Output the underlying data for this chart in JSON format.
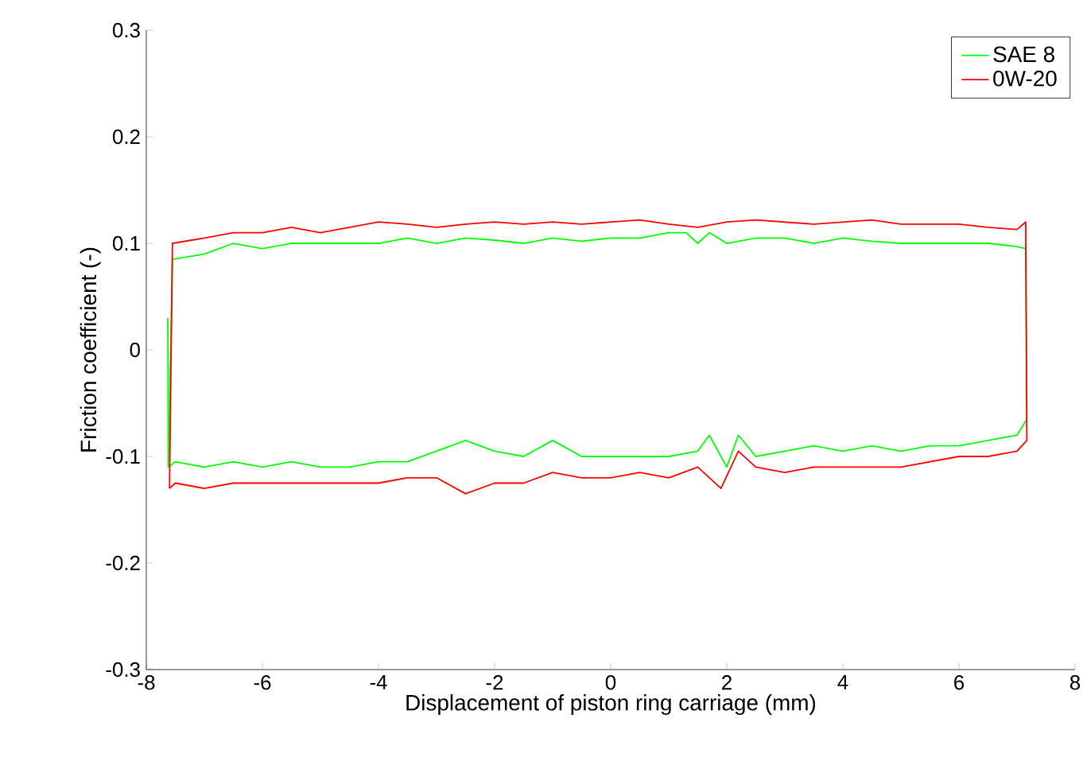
{
  "chart_data": {
    "type": "line",
    "xlabel": "Displacement of piston ring carriage (mm)",
    "ylabel": "Friction coefficient (-)",
    "xlim": [
      -8,
      8
    ],
    "ylim": [
      -0.3,
      0.3
    ],
    "xticks": [
      -8,
      -6,
      -4,
      -2,
      0,
      2,
      4,
      6,
      8
    ],
    "yticks": [
      -0.3,
      -0.2,
      -0.1,
      0,
      0.1,
      0.2,
      0.3
    ],
    "grid": false,
    "legend": "top right",
    "marker": "none",
    "line_style": "solid",
    "series": [
      {
        "name": "SAE 8",
        "color": "#00ff00",
        "x": [
          -7.62,
          -7.55,
          -7,
          -6.5,
          -6,
          -5.5,
          -5,
          -4.5,
          -4,
          -3.5,
          -3,
          -2.5,
          -2,
          -1.5,
          -1,
          -0.5,
          0,
          0.5,
          1,
          1.3,
          1.5,
          1.7,
          2,
          2.5,
          3,
          3.5,
          4,
          4.5,
          5,
          5.5,
          6,
          6.5,
          7,
          7.15,
          7.17
        ],
        "values": [
          -0.11,
          0.085,
          0.09,
          0.1,
          0.095,
          0.1,
          0.1,
          0.1,
          0.1,
          0.105,
          0.1,
          0.105,
          0.103,
          0.1,
          0.105,
          0.102,
          0.105,
          0.105,
          0.11,
          0.11,
          0.1,
          0.11,
          0.1,
          0.105,
          0.105,
          0.1,
          0.105,
          0.102,
          0.1,
          0.1,
          0.1,
          0.1,
          0.097,
          0.095,
          -0.065
        ]
      },
      {
        "color": "#00ff00",
        "x": [
          -7.63,
          -7.62,
          -7.5,
          -7,
          -6.5,
          -6,
          -5.5,
          -5,
          -4.5,
          -4,
          -3.5,
          -3,
          -2.5,
          -2,
          -1.5,
          -1,
          -0.5,
          0,
          0.5,
          1,
          1.5,
          1.7,
          2,
          2.2,
          2.5,
          3,
          3.5,
          4,
          4.5,
          5,
          5.5,
          6,
          6.5,
          7,
          7.17
        ],
        "values": [
          0.03,
          -0.11,
          -0.105,
          -0.11,
          -0.105,
          -0.11,
          -0.105,
          -0.11,
          -0.11,
          -0.105,
          -0.105,
          -0.095,
          -0.085,
          -0.095,
          -0.1,
          -0.085,
          -0.1,
          -0.1,
          -0.1,
          -0.1,
          -0.095,
          -0.08,
          -0.11,
          -0.08,
          -0.1,
          -0.095,
          -0.09,
          -0.095,
          -0.09,
          -0.095,
          -0.09,
          -0.09,
          -0.085,
          -0.08,
          -0.065
        ]
      },
      {
        "name": "0W-20",
        "color": "#ff0000",
        "x": [
          -7.6,
          -7.55,
          -7,
          -6.5,
          -6,
          -5.5,
          -5,
          -4.5,
          -4,
          -3.5,
          -3,
          -2.5,
          -2,
          -1.5,
          -1,
          -0.5,
          0,
          0.5,
          1,
          1.5,
          2,
          2.5,
          3,
          3.5,
          4,
          4.5,
          5,
          5.5,
          6,
          6.5,
          7,
          7.15,
          7.17
        ],
        "values": [
          -0.13,
          0.1,
          0.105,
          0.11,
          0.11,
          0.115,
          0.11,
          0.115,
          0.12,
          0.118,
          0.115,
          0.118,
          0.12,
          0.118,
          0.12,
          0.118,
          0.12,
          0.122,
          0.118,
          0.115,
          0.12,
          0.122,
          0.12,
          0.118,
          0.12,
          0.122,
          0.118,
          0.118,
          0.118,
          0.115,
          0.113,
          0.12,
          -0.085
        ]
      },
      {
        "color": "#ff0000",
        "x": [
          -7.6,
          -7.5,
          -7,
          -6.5,
          -6,
          -5.5,
          -5,
          -4.5,
          -4,
          -3.5,
          -3,
          -2.5,
          -2,
          -1.5,
          -1,
          -0.5,
          0,
          0.5,
          1,
          1.5,
          1.9,
          2.2,
          2.5,
          3,
          3.5,
          4,
          4.5,
          5,
          5.5,
          6,
          6.5,
          7,
          7.17
        ],
        "values": [
          -0.13,
          -0.125,
          -0.13,
          -0.125,
          -0.125,
          -0.125,
          -0.125,
          -0.125,
          -0.125,
          -0.12,
          -0.12,
          -0.135,
          -0.125,
          -0.125,
          -0.115,
          -0.12,
          -0.12,
          -0.115,
          -0.12,
          -0.11,
          -0.13,
          -0.095,
          -0.11,
          -0.115,
          -0.11,
          -0.11,
          -0.11,
          -0.11,
          -0.105,
          -0.1,
          -0.1,
          -0.095,
          -0.085
        ]
      }
    ]
  }
}
